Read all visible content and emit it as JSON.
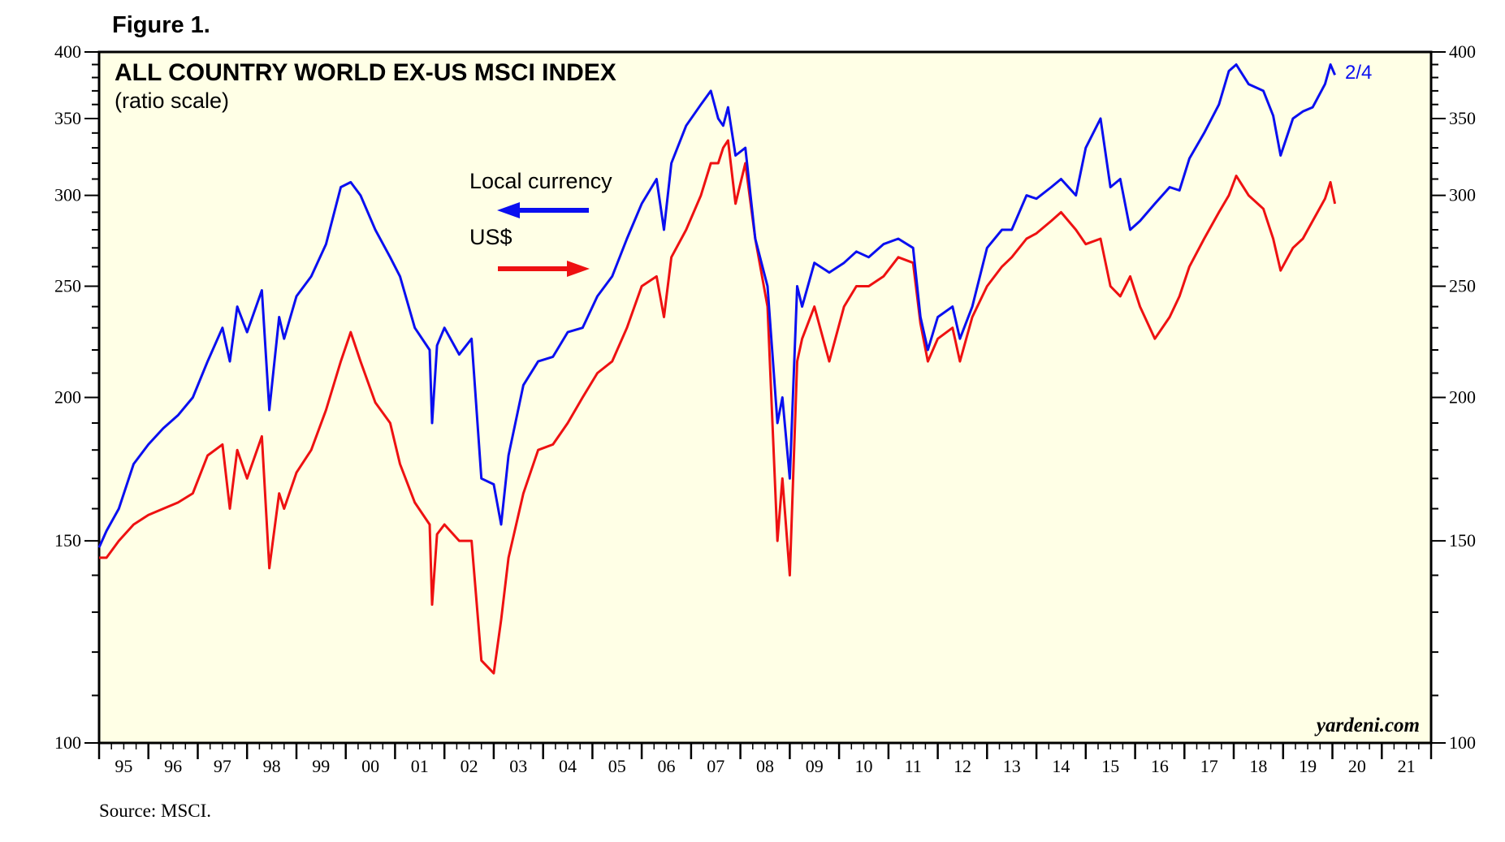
{
  "figure_label": "Figure 1.",
  "source": "Source: MSCI.",
  "watermark": "yardeni.com",
  "chart_data": {
    "type": "line",
    "title": "ALL COUNTRY WORLD EX-US MSCI INDEX",
    "subtitle": "(ratio scale)",
    "y_scale": "log",
    "ylim": [
      100,
      400
    ],
    "y_ticks": [
      100,
      150,
      200,
      250,
      300,
      350,
      400
    ],
    "y_tick_labels": [
      "100",
      "150",
      "200",
      "250",
      "300",
      "350",
      "400"
    ],
    "xlim": [
      1995,
      2022
    ],
    "x_tick_labels": [
      "95",
      "96",
      "97",
      "98",
      "99",
      "00",
      "01",
      "02",
      "03",
      "04",
      "05",
      "06",
      "07",
      "08",
      "09",
      "10",
      "11",
      "12",
      "13",
      "14",
      "15",
      "16",
      "17",
      "18",
      "19",
      "20",
      "21"
    ],
    "end_label": "2/4",
    "colors": {
      "local": "#0a0ff0",
      "usd": "#ee1111",
      "background": "#ffffe6"
    },
    "legend": [
      {
        "name": "Local currency",
        "arrow": "left",
        "color": "#0a0ff0"
      },
      {
        "name": "US$",
        "arrow": "right",
        "color": "#ee1111"
      }
    ],
    "series": [
      {
        "name": "Local currency",
        "x": [
          1995.0,
          1995.15,
          1995.4,
          1995.7,
          1996.0,
          1996.3,
          1996.6,
          1996.9,
          1997.2,
          1997.5,
          1997.65,
          1997.8,
          1998.0,
          1998.3,
          1998.45,
          1998.65,
          1998.75,
          1999.0,
          1999.3,
          1999.6,
          1999.9,
          2000.1,
          2000.3,
          2000.6,
          2000.9,
          2001.1,
          2001.4,
          2001.7,
          2001.75,
          2001.85,
          2002.0,
          2002.3,
          2002.55,
          2002.75,
          2003.0,
          2003.15,
          2003.3,
          2003.6,
          2003.9,
          2004.2,
          2004.5,
          2004.8,
          2005.1,
          2005.4,
          2005.7,
          2006.0,
          2006.3,
          2006.45,
          2006.6,
          2006.9,
          2007.2,
          2007.4,
          2007.55,
          2007.65,
          2007.75,
          2007.9,
          2008.1,
          2008.3,
          2008.55,
          2008.75,
          2008.85,
          2009.0,
          2009.15,
          2009.25,
          2009.5,
          2009.8,
          2010.1,
          2010.35,
          2010.6,
          2010.9,
          2011.2,
          2011.5,
          2011.65,
          2011.8,
          2012.0,
          2012.3,
          2012.45,
          2012.7,
          2013.0,
          2013.3,
          2013.5,
          2013.8,
          2014.0,
          2014.3,
          2014.5,
          2014.8,
          2015.0,
          2015.3,
          2015.5,
          2015.7,
          2015.9,
          2016.1,
          2016.4,
          2016.7,
          2016.9,
          2017.1,
          2017.4,
          2017.7,
          2017.9,
          2018.05,
          2018.3,
          2018.6,
          2018.8,
          2018.95,
          2019.2,
          2019.4,
          2019.6,
          2019.85,
          2019.96,
          2020.05
        ],
        "values": [
          148,
          153,
          160,
          175,
          182,
          188,
          193,
          200,
          215,
          230,
          215,
          240,
          228,
          248,
          195,
          235,
          225,
          245,
          255,
          272,
          305,
          308,
          300,
          280,
          265,
          255,
          230,
          220,
          190,
          222,
          230,
          218,
          225,
          170,
          168,
          155,
          178,
          205,
          215,
          217,
          228,
          230,
          245,
          255,
          275,
          295,
          310,
          280,
          320,
          345,
          360,
          370,
          350,
          345,
          358,
          325,
          330,
          275,
          250,
          190,
          200,
          170,
          250,
          240,
          262,
          257,
          262,
          268,
          265,
          272,
          275,
          270,
          235,
          220,
          235,
          240,
          225,
          240,
          270,
          280,
          280,
          300,
          298,
          305,
          310,
          300,
          330,
          350,
          305,
          310,
          280,
          285,
          295,
          305,
          303,
          323,
          340,
          360,
          385,
          390,
          375,
          370,
          352,
          325,
          350,
          355,
          358,
          375,
          390,
          382
        ]
      },
      {
        "name": "US$",
        "x": [
          1995.0,
          1995.15,
          1995.4,
          1995.7,
          1996.0,
          1996.3,
          1996.6,
          1996.9,
          1997.2,
          1997.5,
          1997.65,
          1997.8,
          1998.0,
          1998.3,
          1998.45,
          1998.65,
          1998.75,
          1999.0,
          1999.3,
          1999.6,
          1999.9,
          2000.1,
          2000.3,
          2000.6,
          2000.9,
          2001.1,
          2001.4,
          2001.7,
          2001.75,
          2001.85,
          2002.0,
          2002.3,
          2002.55,
          2002.75,
          2003.0,
          2003.15,
          2003.3,
          2003.6,
          2003.9,
          2004.2,
          2004.5,
          2004.8,
          2005.1,
          2005.4,
          2005.7,
          2006.0,
          2006.3,
          2006.45,
          2006.6,
          2006.9,
          2007.2,
          2007.4,
          2007.55,
          2007.65,
          2007.75,
          2007.9,
          2008.1,
          2008.3,
          2008.55,
          2008.75,
          2008.85,
          2009.0,
          2009.15,
          2009.25,
          2009.5,
          2009.8,
          2010.1,
          2010.35,
          2010.6,
          2010.9,
          2011.2,
          2011.5,
          2011.65,
          2011.8,
          2012.0,
          2012.3,
          2012.45,
          2012.7,
          2013.0,
          2013.3,
          2013.5,
          2013.8,
          2014.0,
          2014.3,
          2014.5,
          2014.8,
          2015.0,
          2015.3,
          2015.5,
          2015.7,
          2015.9,
          2016.1,
          2016.4,
          2016.7,
          2016.9,
          2017.1,
          2017.4,
          2017.7,
          2017.9,
          2018.05,
          2018.3,
          2018.6,
          2018.8,
          2018.95,
          2019.2,
          2019.4,
          2019.6,
          2019.85,
          2019.96,
          2020.05
        ],
        "values": [
          145,
          145,
          150,
          155,
          158,
          160,
          162,
          165,
          178,
          182,
          160,
          180,
          170,
          185,
          142,
          165,
          160,
          172,
          180,
          195,
          215,
          228,
          215,
          198,
          190,
          175,
          162,
          155,
          132,
          152,
          155,
          150,
          150,
          118,
          115,
          128,
          145,
          165,
          180,
          182,
          190,
          200,
          210,
          215,
          230,
          250,
          255,
          235,
          265,
          280,
          300,
          320,
          320,
          330,
          335,
          295,
          320,
          275,
          240,
          150,
          170,
          140,
          215,
          225,
          240,
          215,
          240,
          250,
          250,
          255,
          265,
          262,
          232,
          215,
          225,
          230,
          215,
          235,
          250,
          260,
          265,
          275,
          278,
          285,
          290,
          280,
          272,
          275,
          250,
          245,
          255,
          240,
          225,
          235,
          245,
          260,
          275,
          290,
          300,
          312,
          300,
          292,
          275,
          258,
          270,
          275,
          285,
          298,
          308,
          295
        ]
      }
    ]
  }
}
